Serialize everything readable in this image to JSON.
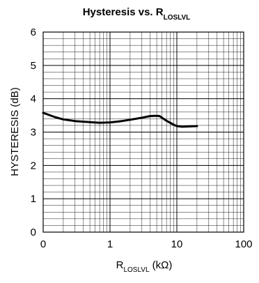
{
  "chart_data": {
    "type": "line",
    "title": {
      "main": "Hysteresis vs. R",
      "subscript": "LOSLVL"
    },
    "xlabel": {
      "main": "R",
      "subscript": "LOSLVL",
      "unit": " (kΩ)"
    },
    "ylabel": "HYSTERESIS (dB)",
    "x_scale": "log",
    "x_tick_labels": [
      "0",
      "1",
      "10",
      "100"
    ],
    "y_tick_labels": [
      "0",
      "1",
      "2",
      "3",
      "4",
      "5",
      "6"
    ],
    "xlim": [
      0.1,
      100
    ],
    "ylim": [
      0,
      6
    ],
    "grid": true,
    "series": [
      {
        "x": [
          0.1,
          0.12,
          0.15,
          0.2,
          0.3,
          0.5,
          0.7,
          1.0,
          1.5,
          2.0,
          3.0,
          4.0,
          5.0,
          5.5,
          7.0,
          9.0,
          10.0,
          12.0,
          15.0,
          20.0
        ],
        "values": [
          3.58,
          3.52,
          3.45,
          3.38,
          3.33,
          3.3,
          3.28,
          3.29,
          3.33,
          3.37,
          3.43,
          3.48,
          3.49,
          3.48,
          3.34,
          3.22,
          3.18,
          3.16,
          3.17,
          3.18
        ]
      }
    ]
  }
}
